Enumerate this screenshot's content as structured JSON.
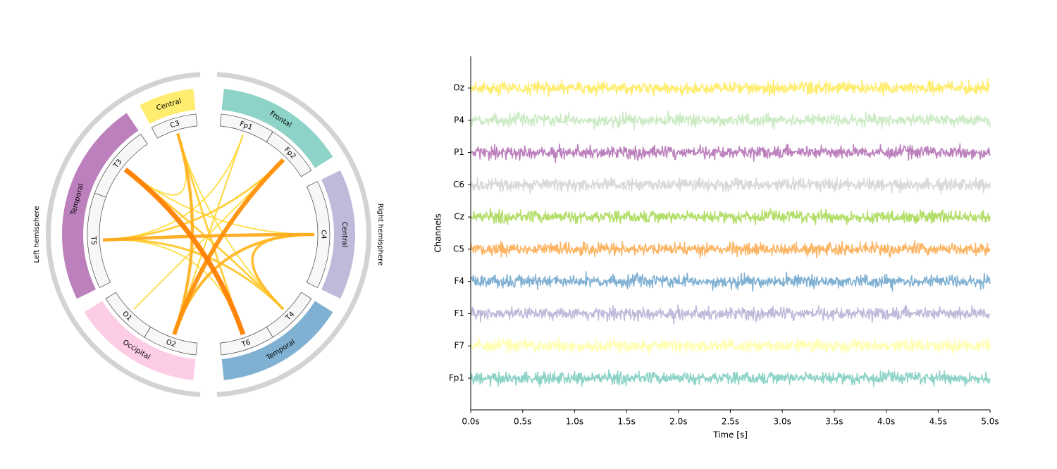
{
  "chart_data": [
    {
      "type": "chord",
      "hemispheres": [
        {
          "label": "Right hemisphere",
          "color": "#d3d3d3"
        },
        {
          "label": "Left hemisphere",
          "color": "#d3d3d3"
        }
      ],
      "regions": [
        {
          "label": "Frontal",
          "color": "#8dd3c7",
          "channels": [
            "Fp1",
            "Fp2"
          ]
        },
        {
          "label": "Central",
          "color": "#bebada",
          "channels": [
            "C4"
          ]
        },
        {
          "label": "Temporal",
          "color": "#80b1d3",
          "channels": [
            "T4",
            "T6"
          ]
        },
        {
          "label": "Occipital",
          "color": "#fccde5",
          "channels": [
            "O2",
            "O1"
          ]
        },
        {
          "label": "Temporal",
          "color": "#bc80bd",
          "channels": [
            "T5",
            "T3"
          ]
        },
        {
          "label": "Central",
          "color": "#ffed6f",
          "channels": [
            "C3"
          ]
        }
      ],
      "channels": [
        "Fp1",
        "Fp2",
        "C4",
        "T4",
        "T6",
        "O2",
        "O1",
        "T5",
        "T3",
        "C3"
      ],
      "connections": [
        {
          "source": "T3",
          "target": "T6",
          "strength": 1.0
        },
        {
          "source": "Fp2",
          "target": "O2",
          "strength": 0.85
        },
        {
          "source": "C4",
          "target": "T5",
          "strength": 0.6
        },
        {
          "source": "C3",
          "target": "O2",
          "strength": 0.55
        },
        {
          "source": "C4",
          "target": "O2",
          "strength": 0.5
        },
        {
          "source": "T4",
          "target": "C4",
          "strength": 0.45
        },
        {
          "source": "T4",
          "target": "T5",
          "strength": 0.35
        },
        {
          "source": "T3",
          "target": "T4",
          "strength": 0.3
        },
        {
          "source": "C3",
          "target": "T6",
          "strength": 0.3
        },
        {
          "source": "Fp2",
          "target": "T5",
          "strength": 0.3
        },
        {
          "source": "Fp1",
          "target": "O2",
          "strength": 0.2
        },
        {
          "source": "Fp1",
          "target": "T5",
          "strength": 0.15
        },
        {
          "source": "T3",
          "target": "C4",
          "strength": 0.15
        },
        {
          "source": "O1",
          "target": "Fp2",
          "strength": 0.15
        },
        {
          "source": "T5",
          "target": "T6",
          "strength": 0.15
        },
        {
          "source": "T3",
          "target": "C3",
          "strength": 0.15
        },
        {
          "source": "C3",
          "target": "T4",
          "strength": 0.15
        }
      ],
      "colormap": [
        "#ffed4a",
        "#ff7f00"
      ]
    },
    {
      "type": "line",
      "title": "",
      "xlabel": "Time [s]",
      "ylabel": "Channels",
      "xlim": [
        0,
        5
      ],
      "xticks": [
        "0.0s",
        "0.5s",
        "1.0s",
        "1.5s",
        "2.0s",
        "2.5s",
        "3.0s",
        "3.5s",
        "4.0s",
        "4.5s",
        "5.0s"
      ],
      "grid": false,
      "series": [
        {
          "name": "Oz",
          "color": "#ffed6f"
        },
        {
          "name": "P4",
          "color": "#ccebc5"
        },
        {
          "name": "P1",
          "color": "#bc80bd"
        },
        {
          "name": "C6",
          "color": "#d9d9d9"
        },
        {
          "name": "Cz",
          "color": "#b3de69"
        },
        {
          "name": "C5",
          "color": "#fdb462"
        },
        {
          "name": "F4",
          "color": "#80b1d3"
        },
        {
          "name": "F1",
          "color": "#bebada"
        },
        {
          "name": "F7",
          "color": "#ffffb3"
        },
        {
          "name": "Fp1",
          "color": "#8dd3c7"
        }
      ],
      "signal": {
        "kind": "random-noise",
        "amplitude_offsets": 0.35
      }
    }
  ]
}
